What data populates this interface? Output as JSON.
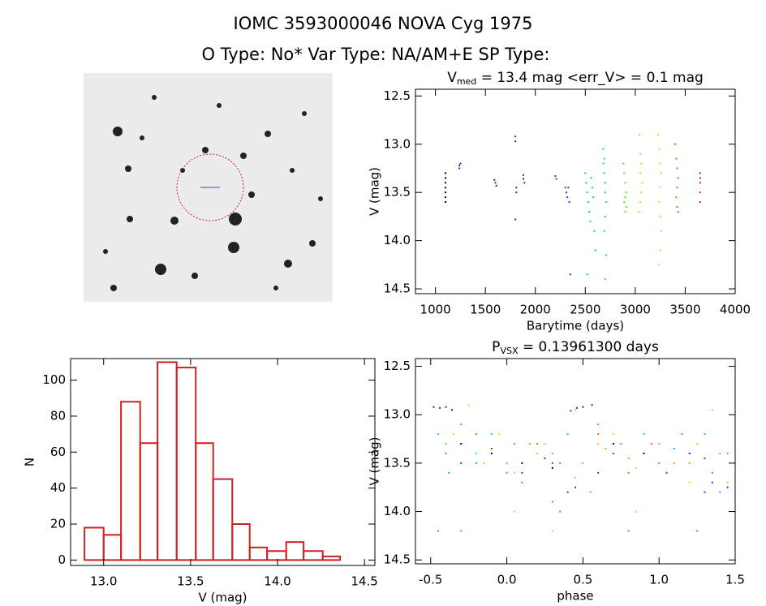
{
  "header": {
    "title": "IOMC 3593000046    NOVA Cyg 1975",
    "subtitle": "O Type: No*  Var Type: NA/AM+E  SP Type:"
  },
  "chart_data": [
    {
      "type": "scatter",
      "title": {
        "main": "V",
        "sub": "med",
        "rest": " = 13.4 mag <err_V> = 0.1 mag"
      },
      "x_label": "Barytime (days)",
      "y_label": "V (mag)",
      "xlim": [
        800,
        4000
      ],
      "ylim": [
        14.55,
        12.43
      ],
      "xticks": [
        1000,
        1500,
        2000,
        2500,
        3000,
        3500,
        4000
      ],
      "yticks": [
        12.5,
        {
          "value": 13.0,
          "label": "13.0"
        },
        13.5,
        {
          "value": 14.0,
          "label": "14.0"
        },
        14.5
      ],
      "series": [
        {
          "color": "#000000",
          "x": [
            1100,
            1100,
            1100,
            1100,
            1100,
            1100,
            1100
          ],
          "values": [
            13.3,
            13.35,
            13.4,
            13.45,
            13.5,
            13.55,
            13.6
          ]
        },
        {
          "color": "#5a10a0",
          "x": [
            1240,
            1240,
            1250,
            1590,
            1600,
            1610,
            1800,
            1800,
            1810,
            1810,
            1800,
            1880,
            1880,
            1890
          ],
          "values": [
            13.22,
            13.25,
            13.2,
            13.37,
            13.4,
            13.43,
            12.92,
            12.97,
            13.45,
            13.5,
            13.78,
            13.32,
            13.36,
            13.4
          ]
        },
        {
          "color": "#2040c0",
          "x": [
            2200,
            2210,
            2300,
            2310,
            2320,
            2340,
            2330,
            2350
          ],
          "values": [
            13.33,
            13.36,
            13.45,
            13.5,
            13.55,
            13.6,
            13.45,
            14.35
          ]
        },
        {
          "color": "#00c0d8",
          "x": [
            2500,
            2510,
            2520,
            2530,
            2540,
            2550,
            2560,
            2570,
            2580,
            2590,
            2600,
            2520
          ],
          "values": [
            13.3,
            13.4,
            13.5,
            13.6,
            13.7,
            13.8,
            13.35,
            13.45,
            13.55,
            13.9,
            14.1,
            14.35
          ]
        },
        {
          "color": "#20d080",
          "x": [
            2680,
            2690,
            2690,
            2700,
            2700,
            2710,
            2700,
            2690,
            2710,
            2700,
            2680
          ],
          "values": [
            13.05,
            13.15,
            13.3,
            13.4,
            13.5,
            13.6,
            13.75,
            13.9,
            14.15,
            14.4,
            13.2
          ]
        },
        {
          "color": "#60e020",
          "x": [
            2880,
            2890,
            2900,
            2910,
            2900,
            2890,
            2910,
            2900
          ],
          "values": [
            13.2,
            13.3,
            13.4,
            13.5,
            13.55,
            13.6,
            13.65,
            13.7
          ]
        },
        {
          "color": "#c0e020",
          "x": [
            3040,
            3050,
            3060,
            3050,
            3070,
            3060,
            3050,
            3040
          ],
          "values": [
            12.9,
            13.1,
            13.2,
            13.3,
            13.4,
            13.5,
            13.6,
            13.7
          ]
        },
        {
          "color": "#f0d000",
          "x": [
            3230,
            3240,
            3250,
            3260,
            3250,
            3240,
            3250,
            3260,
            3250,
            3240
          ],
          "values": [
            12.9,
            13.05,
            13.2,
            13.3,
            13.45,
            13.6,
            13.75,
            13.9,
            14.1,
            14.25
          ]
        },
        {
          "color": "#d07010",
          "x": [
            3400,
            3410,
            3420,
            3430,
            3420,
            3410,
            3420,
            3430
          ],
          "values": [
            13.0,
            13.15,
            13.25,
            13.35,
            13.45,
            13.55,
            13.65,
            13.7
          ]
        },
        {
          "color": "#c03010",
          "x": [
            3650,
            3650,
            3650,
            3650,
            3650
          ],
          "values": [
            13.3,
            13.35,
            13.4,
            13.5,
            13.6
          ]
        }
      ]
    },
    {
      "type": "histogram",
      "x_label": "V (mag)",
      "y_label": "N",
      "xlim": [
        12.81,
        14.56
      ],
      "ylim": [
        -3,
        112
      ],
      "xticks": [
        {
          "value": 13.0,
          "label": "13.0"
        },
        13.5,
        {
          "value": 14.0,
          "label": "14.0"
        },
        14.5
      ],
      "yticks": [
        0,
        20,
        40,
        60,
        80,
        100
      ],
      "color": "#d02020",
      "bins": [
        12.89,
        13.0,
        13.1,
        13.21,
        13.31,
        13.42,
        13.53,
        13.63,
        13.74,
        13.84,
        13.94,
        14.05,
        14.15,
        14.26,
        14.36
      ],
      "values": [
        18,
        14,
        88,
        65,
        110,
        107,
        65,
        45,
        20,
        7,
        5,
        10,
        5,
        2
      ]
    },
    {
      "type": "scatter",
      "title": {
        "main": "P",
        "sub": "VSX",
        "rest": " = 0.13961300 days"
      },
      "x_label": "phase",
      "y_label": "V (mag)",
      "xlim": [
        -0.6,
        1.5
      ],
      "ylim": [
        14.54,
        12.42
      ],
      "xticks": [
        -0.5,
        {
          "value": 0.0,
          "label": "0.0"
        },
        0.5,
        {
          "value": 1.0,
          "label": "1.0"
        },
        1.5
      ],
      "yticks": [
        12.5,
        {
          "value": 13.0,
          "label": "13.0"
        },
        13.5,
        {
          "value": 14.0,
          "label": "14.0"
        },
        14.5
      ],
      "series": [
        {
          "color": "#000000",
          "x": [
            -0.3,
            -0.1,
            0.1,
            0.3,
            0.7,
            0.9,
            1.1
          ],
          "values": [
            13.3,
            13.4,
            13.5,
            13.55,
            13.3,
            13.4,
            13.5
          ]
        },
        {
          "color": "#5a10a0",
          "x": [
            -0.48,
            -0.44,
            -0.4,
            -0.36,
            0.42,
            0.46,
            0.5,
            0.56,
            0.25,
            1.2
          ],
          "values": [
            12.92,
            12.93,
            12.92,
            12.95,
            12.96,
            12.93,
            12.92,
            12.9,
            13.45,
            13.4
          ]
        },
        {
          "color": "#2040c0",
          "x": [
            -0.3,
            0.1,
            0.4,
            0.45,
            0.6,
            1.3,
            1.35,
            1.45
          ],
          "values": [
            13.5,
            13.6,
            13.8,
            13.75,
            13.6,
            13.8,
            13.7,
            13.75
          ]
        },
        {
          "color": "#00c0d8",
          "x": [
            -0.45,
            -0.38,
            -0.3,
            -0.2,
            0.1,
            0.3,
            0.55,
            0.8,
            1.0,
            1.25,
            1.4,
            0.35
          ],
          "values": [
            14.2,
            13.6,
            14.2,
            13.5,
            13.7,
            13.9,
            13.8,
            14.2,
            13.5,
            14.2,
            13.8,
            14.0
          ]
        },
        {
          "color": "#20d080",
          "x": [
            -0.45,
            -0.3,
            -0.1,
            0.05,
            0.2,
            0.4,
            0.6,
            0.75,
            0.9,
            1.1,
            1.3,
            1.45
          ],
          "values": [
            13.2,
            13.1,
            13.2,
            13.3,
            13.4,
            13.2,
            13.1,
            13.3,
            13.2,
            13.35,
            13.2,
            13.4
          ]
        },
        {
          "color": "#60e020",
          "x": [
            -0.4,
            -0.2,
            0.0,
            0.15,
            0.3,
            0.5,
            0.65,
            0.8,
            1.0,
            1.2,
            1.4
          ],
          "values": [
            13.3,
            13.4,
            13.5,
            13.3,
            13.4,
            13.5,
            13.35,
            13.45,
            13.3,
            13.5,
            13.4
          ]
        },
        {
          "color": "#c0e020",
          "x": [
            -0.35,
            -0.15,
            0.05,
            0.25,
            0.45,
            0.7,
            0.85,
            1.05,
            1.25,
            1.45
          ],
          "values": [
            13.2,
            13.5,
            13.6,
            13.3,
            13.65,
            13.2,
            13.55,
            13.6,
            13.3,
            13.7
          ]
        },
        {
          "color": "#f0d000",
          "x": [
            -0.25,
            -0.05,
            0.05,
            0.2,
            0.45,
            0.6,
            0.85,
            1.1,
            1.2,
            1.35,
            0.3
          ],
          "values": [
            12.9,
            13.2,
            14.0,
            13.4,
            12.95,
            13.3,
            14.0,
            13.5,
            13.7,
            12.95,
            14.2
          ]
        },
        {
          "color": "#d07010",
          "x": [
            -0.4,
            -0.2,
            0.0,
            0.2,
            0.35,
            0.6,
            0.8,
            0.95,
            1.15,
            1.35
          ],
          "values": [
            13.4,
            13.2,
            13.6,
            13.3,
            13.5,
            13.2,
            13.6,
            13.3,
            13.2,
            13.6
          ]
        },
        {
          "color": "#c03010",
          "x": [
            -0.1,
            0.3,
            0.7,
            1.05,
            1.3
          ],
          "values": [
            13.35,
            13.5,
            13.4,
            13.6,
            13.45
          ]
        }
      ]
    }
  ]
}
